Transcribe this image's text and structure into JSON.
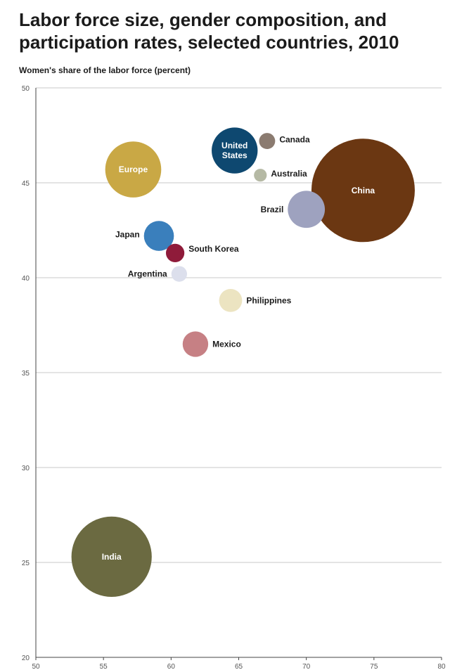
{
  "title": "Labor force size, gender composition, and participation rates, selected countries, 2010",
  "chart_data": {
    "type": "scatter",
    "title": "Labor force size, gender composition, and participation rates, selected countries, 2010",
    "xlabel": "",
    "ylabel": "Women's share of the labor force (percent)",
    "xlim": [
      50,
      80
    ],
    "ylim": [
      20,
      50
    ],
    "xticks": [
      50,
      55,
      60,
      65,
      70,
      75,
      80
    ],
    "yticks": [
      20,
      25,
      30,
      35,
      40,
      45,
      50
    ],
    "grid": "horizontal",
    "points": [
      {
        "label": "India",
        "x": 55.6,
        "y": 25.3,
        "size": 473,
        "color": "#6b6a41",
        "label_inside": true
      },
      {
        "label": "China",
        "x": 74.2,
        "y": 44.6,
        "size": 784,
        "color": "#6b3712",
        "label_inside": true
      },
      {
        "label": "Europe",
        "x": 57.2,
        "y": 45.7,
        "size": 230,
        "color": "#c9a845",
        "label_inside": true
      },
      {
        "label": "United States",
        "x": 64.7,
        "y": 46.7,
        "size": 155,
        "color": "#0e4870",
        "label_inside": true
      },
      {
        "label": "Canada",
        "x": 67.1,
        "y": 47.2,
        "size": 19,
        "color": "#8b7b70",
        "label_inside": false
      },
      {
        "label": "Australia",
        "x": 66.6,
        "y": 45.4,
        "size": 12,
        "color": "#b5b9a4",
        "label_inside": false
      },
      {
        "label": "Brazil",
        "x": 70.0,
        "y": 43.6,
        "size": 101,
        "color": "#9ea2bf",
        "label_inside": false
      },
      {
        "label": "Japan",
        "x": 59.1,
        "y": 42.2,
        "size": 66,
        "color": "#3a7fbc",
        "label_inside": false
      },
      {
        "label": "South Korea",
        "x": 60.3,
        "y": 41.3,
        "size": 25,
        "color": "#8f1b3a",
        "label_inside": false
      },
      {
        "label": "Argentina",
        "x": 60.6,
        "y": 40.2,
        "size": 18,
        "color": "#dcdfec",
        "label_inside": false
      },
      {
        "label": "Philippines",
        "x": 64.4,
        "y": 38.8,
        "size": 39,
        "color": "#ece4c1",
        "label_inside": false
      },
      {
        "label": "Mexico",
        "x": 61.8,
        "y": 36.5,
        "size": 48,
        "color": "#c68084",
        "label_inside": false
      }
    ]
  }
}
